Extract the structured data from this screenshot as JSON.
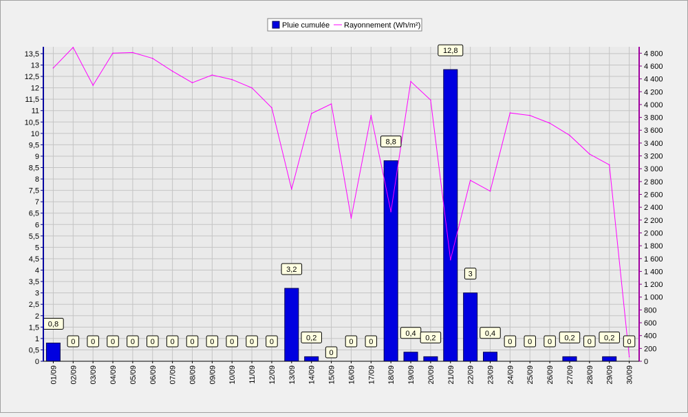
{
  "chart_data": {
    "type": "bar",
    "legend_placement": "top-center",
    "grid": true,
    "legend": [
      {
        "key": "rain",
        "label": "Pluie cumulée",
        "color": "#0000e0"
      },
      {
        "key": "radiation",
        "label": "Rayonnement (Wh/m²)",
        "color": "#ff00ff"
      }
    ],
    "categories": [
      "01/09",
      "02/09",
      "03/09",
      "04/09",
      "05/09",
      "06/09",
      "07/09",
      "08/09",
      "09/09",
      "10/09",
      "11/09",
      "12/09",
      "13/09",
      "14/09",
      "15/09",
      "16/09",
      "17/09",
      "18/09",
      "19/09",
      "20/09",
      "21/09",
      "22/09",
      "23/09",
      "24/09",
      "25/09",
      "26/09",
      "27/09",
      "28/09",
      "29/09",
      "30/09"
    ],
    "series": [
      {
        "name": "Pluie cumulée",
        "type": "bar",
        "axis": "left",
        "color": "#0000e0",
        "values": [
          0.8,
          0,
          0,
          0,
          0,
          0,
          0,
          0,
          0,
          0,
          0,
          0,
          3.2,
          0.2,
          0,
          0,
          0,
          8.8,
          0.4,
          0.2,
          12.8,
          3,
          0.4,
          0,
          0,
          0,
          0.2,
          0,
          0.2,
          0
        ],
        "data_labels": [
          "0,8",
          "0",
          "0",
          "0",
          "0",
          "0",
          "0",
          "0",
          "0",
          "0",
          "0",
          "0",
          "3,2",
          "0,2",
          "0",
          "0",
          "0",
          "8,8",
          "0,4",
          "0,2",
          "12,8",
          "3",
          "0,4",
          "0",
          "0",
          "0",
          "0,2",
          "0",
          "0,2",
          "0"
        ]
      },
      {
        "name": "Rayonnement (Wh/m²)",
        "type": "line",
        "axis": "right",
        "color": "#ff00ff",
        "values": [
          4570,
          4890,
          4300,
          4800,
          4810,
          4720,
          4520,
          4340,
          4460,
          4390,
          4260,
          3950,
          2680,
          3860,
          4010,
          2230,
          3830,
          2330,
          4360,
          4070,
          1580,
          2820,
          2650,
          3870,
          3830,
          3710,
          3520,
          3230,
          3060,
          70
        ]
      }
    ],
    "y_left": {
      "min": 0,
      "max": 13.8,
      "ticks": [
        0,
        0.5,
        1,
        1.5,
        2,
        2.5,
        3,
        3.5,
        4,
        4.5,
        5,
        5.5,
        6,
        6.5,
        7,
        7.5,
        8,
        8.5,
        9,
        9.5,
        10,
        10.5,
        11,
        11.5,
        12,
        12.5,
        13,
        13.5
      ],
      "tick_labels": [
        "0",
        "0,5",
        "1",
        "1,5",
        "2",
        "2,5",
        "3",
        "3,5",
        "4",
        "4,5",
        "5",
        "5,5",
        "6",
        "6,5",
        "7",
        "7,5",
        "8",
        "8,5",
        "9",
        "9,5",
        "10",
        "10,5",
        "11",
        "11,5",
        "12",
        "12,5",
        "13",
        "13,5"
      ]
    },
    "y_right": {
      "min": 0,
      "max": 4900,
      "ticks": [
        0,
        200,
        400,
        600,
        800,
        1000,
        1200,
        1400,
        1600,
        1800,
        2000,
        2200,
        2400,
        2600,
        2800,
        3000,
        3200,
        3400,
        3600,
        3800,
        4000,
        4200,
        4400,
        4600,
        4800
      ],
      "tick_labels": [
        "0",
        "200",
        "400",
        "600",
        "800",
        "1 000",
        "1 200",
        "1 400",
        "1 600",
        "1 800",
        "2 000",
        "2 200",
        "2 400",
        "2 600",
        "2 800",
        "3 000",
        "3 200",
        "3 400",
        "3 600",
        "3 800",
        "4 000",
        "4 200",
        "4 400",
        "4 600",
        "4 800"
      ]
    }
  }
}
